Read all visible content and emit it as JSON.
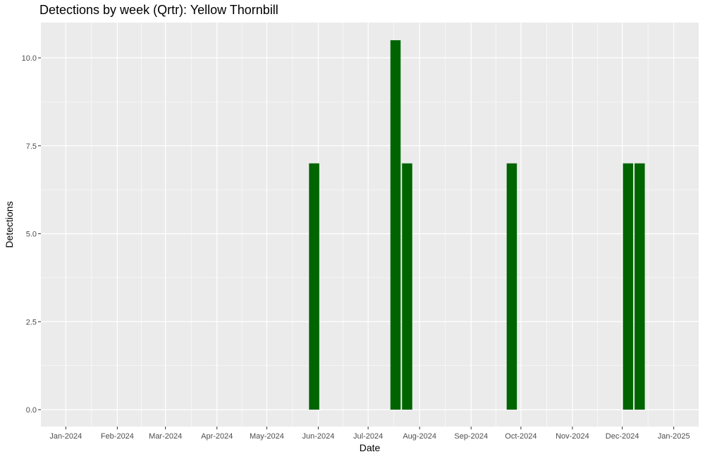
{
  "chart_data": {
    "type": "bar",
    "title": "Detections by week (Qrtr): Yellow Thornbill",
    "xlabel": "Date",
    "ylabel": "Detections",
    "x_ticks": [
      "Jan-2024",
      "Feb-2024",
      "Mar-2024",
      "Apr-2024",
      "May-2024",
      "Jun-2024",
      "Jul-2024",
      "Aug-2024",
      "Sep-2024",
      "Oct-2024",
      "Nov-2024",
      "Dec-2024",
      "Jan-2025"
    ],
    "y_ticks": [
      "0.0",
      "2.5",
      "5.0",
      "7.5",
      "10.0"
    ],
    "ylim": [
      0,
      10.5
    ],
    "xlim": [
      "2023-12-17",
      "2025-01-16"
    ],
    "bar_color": "#006400",
    "panel_color": "#ebebeb",
    "grid": true,
    "bars": [
      {
        "week_start": "2024-05-26",
        "value": 7
      },
      {
        "week_start": "2024-07-14",
        "value": 10.5
      },
      {
        "week_start": "2024-07-21",
        "value": 7
      },
      {
        "week_start": "2024-09-22",
        "value": 7
      },
      {
        "week_start": "2024-12-01",
        "value": 7
      },
      {
        "week_start": "2024-12-08",
        "value": 7
      }
    ]
  }
}
